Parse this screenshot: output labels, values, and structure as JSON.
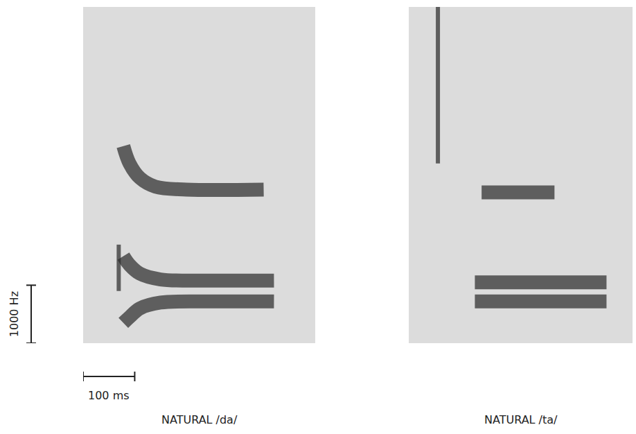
{
  "chart_data": [
    {
      "type": "line",
      "title": "NATURAL /da/",
      "xlim": [
        0,
        450
      ],
      "ylim": [
        0,
        5800
      ],
      "tick_labels": false,
      "series": [
        {
          "color": "#2e2e2e",
          "line_style": "solid",
          "x": [
            69,
            69
          ],
          "values": [
            900,
            1700
          ]
        },
        {
          "color": "#2e2e2e",
          "line_style": "solid",
          "x": [
            78,
            90,
            110,
            140,
            200,
            350
          ],
          "values": [
            3400,
            3100,
            2850,
            2700,
            2650,
            2650
          ]
        },
        {
          "color": "#2e2e2e",
          "line_style": "solid",
          "x": [
            78,
            90,
            110,
            150,
            250,
            370
          ],
          "values": [
            1500,
            1350,
            1200,
            1100,
            1080,
            1080
          ]
        },
        {
          "color": "#2e2e2e",
          "line_style": "solid",
          "x": [
            78,
            90,
            110,
            150,
            250,
            370
          ],
          "values": [
            350,
            450,
            600,
            700,
            720,
            720
          ]
        }
      ]
    },
    {
      "type": "line",
      "title": "NATURAL /ta/",
      "xlim": [
        0,
        430
      ],
      "ylim": [
        0,
        5800
      ],
      "tick_labels": false,
      "series": [
        {
          "color": "#2e2e2e",
          "line_style": "solid",
          "x": [
            56,
            56
          ],
          "values": [
            3100,
            5800
          ]
        },
        {
          "color": "#2e2e2e",
          "line_style": "solid",
          "x": [
            140,
            280
          ],
          "values": [
            2600,
            2600
          ]
        },
        {
          "color": "#2e2e2e",
          "line_style": "solid",
          "x": [
            127,
            380
          ],
          "values": [
            1050,
            1050
          ]
        },
        {
          "color": "#2e2e2e",
          "line_style": "solid",
          "x": [
            127,
            380
          ],
          "values": [
            720,
            720
          ]
        }
      ]
    }
  ],
  "scale_bars": [
    {
      "axis": "y",
      "value": 1000,
      "label": "1000 Hz"
    },
    {
      "axis": "x",
      "value": 100,
      "label": "100 ms"
    }
  ]
}
